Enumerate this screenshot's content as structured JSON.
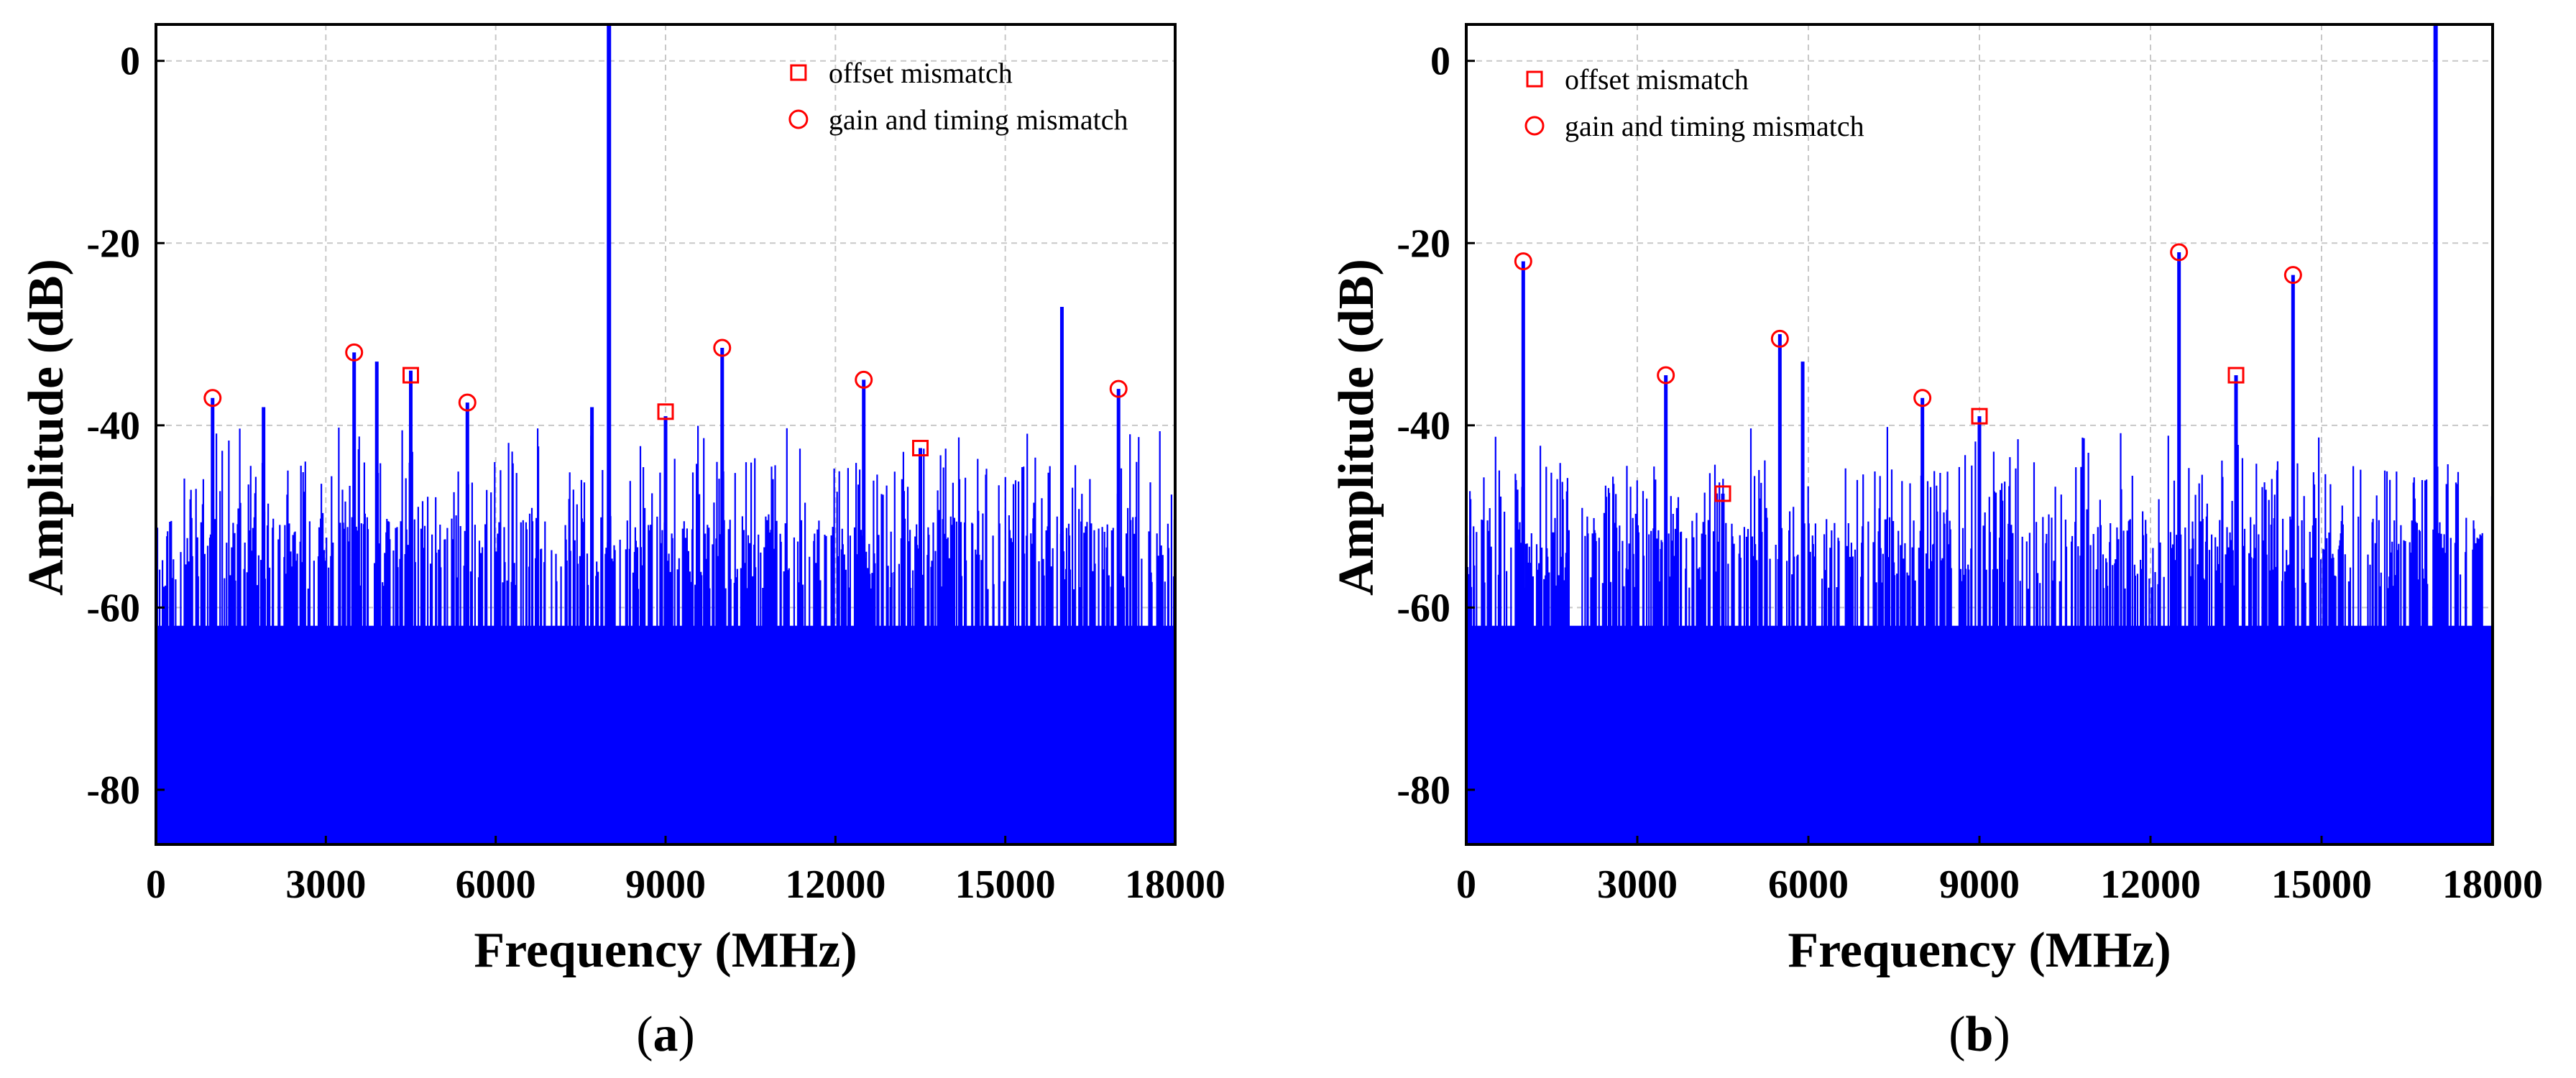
{
  "chart_data": [
    {
      "type": "line",
      "panel_label": "a",
      "xlabel": "Frequency (MHz)",
      "ylabel": "Amplitude (dB)",
      "xlim": [
        0,
        18000
      ],
      "ylim": [
        -86,
        4
      ],
      "xticks": [
        0,
        3000,
        6000,
        9000,
        12000,
        15000,
        18000
      ],
      "yticks": [
        0,
        -20,
        -40,
        -60,
        -80
      ],
      "grid": true,
      "series_color": "#0000ff",
      "noise_floor_db": -86,
      "fundamental": {
        "x": 8000,
        "y": 4
      },
      "spurs": [
        {
          "x": 1000,
          "y": -37
        },
        {
          "x": 1900,
          "y": -38
        },
        {
          "x": 3500,
          "y": -32
        },
        {
          "x": 3900,
          "y": -33
        },
        {
          "x": 4500,
          "y": -34
        },
        {
          "x": 5500,
          "y": -37.5
        },
        {
          "x": 7700,
          "y": -38
        },
        {
          "x": 9000,
          "y": -39
        },
        {
          "x": 10000,
          "y": -31.5
        },
        {
          "x": 12500,
          "y": -35
        },
        {
          "x": 13500,
          "y": -42.5
        },
        {
          "x": 16000,
          "y": -27
        },
        {
          "x": 17000,
          "y": -36
        }
      ],
      "markers": [
        {
          "x": 1000,
          "y": -37,
          "kind": "gain and timing mismatch"
        },
        {
          "x": 3500,
          "y": -32,
          "kind": "gain and timing mismatch"
        },
        {
          "x": 4500,
          "y": -34.5,
          "kind": "offset mismatch"
        },
        {
          "x": 5500,
          "y": -37.5,
          "kind": "gain and timing mismatch"
        },
        {
          "x": 9000,
          "y": -38.5,
          "kind": "offset mismatch"
        },
        {
          "x": 10000,
          "y": -31.5,
          "kind": "gain and timing mismatch"
        },
        {
          "x": 12500,
          "y": -35,
          "kind": "gain and timing mismatch"
        },
        {
          "x": 13500,
          "y": -42.5,
          "kind": "offset mismatch"
        },
        {
          "x": 17000,
          "y": -36,
          "kind": "gain and timing mismatch"
        }
      ],
      "legend": [
        {
          "symbol": "square",
          "label": "offset mismatch"
        },
        {
          "symbol": "circle",
          "label": "gain and timing mismatch"
        }
      ],
      "legend_position": "top-right"
    },
    {
      "type": "line",
      "panel_label": "b",
      "xlabel": "Frequency (MHz)",
      "ylabel": "Amplitude (dB)",
      "xlim": [
        0,
        18000
      ],
      "ylim": [
        -86,
        4
      ],
      "xticks": [
        0,
        3000,
        6000,
        9000,
        12000,
        15000,
        18000
      ],
      "yticks": [
        0,
        -20,
        -40,
        -60,
        -80
      ],
      "grid": true,
      "series_color": "#0000ff",
      "noise_floor_db": -86,
      "fundamental": {
        "x": 17000,
        "y": 4
      },
      "spurs": [
        {
          "x": 1000,
          "y": -22
        },
        {
          "x": 3500,
          "y": -34.5
        },
        {
          "x": 4500,
          "y": -47.5
        },
        {
          "x": 5500,
          "y": -30
        },
        {
          "x": 5900,
          "y": -33
        },
        {
          "x": 8000,
          "y": -37
        },
        {
          "x": 9000,
          "y": -39
        },
        {
          "x": 12500,
          "y": -21
        },
        {
          "x": 13500,
          "y": -34.5
        },
        {
          "x": 14500,
          "y": -23.5
        }
      ],
      "markers": [
        {
          "x": 1000,
          "y": -22,
          "kind": "gain and timing mismatch"
        },
        {
          "x": 3500,
          "y": -34.5,
          "kind": "gain and timing mismatch"
        },
        {
          "x": 4500,
          "y": -47.5,
          "kind": "offset mismatch"
        },
        {
          "x": 5500,
          "y": -30.5,
          "kind": "gain and timing mismatch"
        },
        {
          "x": 8000,
          "y": -37,
          "kind": "gain and timing mismatch"
        },
        {
          "x": 9000,
          "y": -39,
          "kind": "offset mismatch"
        },
        {
          "x": 12500,
          "y": -21,
          "kind": "gain and timing mismatch"
        },
        {
          "x": 13500,
          "y": -34.5,
          "kind": "offset mismatch"
        },
        {
          "x": 14500,
          "y": -23.5,
          "kind": "gain and timing mismatch"
        }
      ],
      "legend": [
        {
          "symbol": "square",
          "label": "offset mismatch"
        },
        {
          "symbol": "circle",
          "label": "gain and timing mismatch"
        }
      ],
      "legend_position": "top-left"
    }
  ]
}
